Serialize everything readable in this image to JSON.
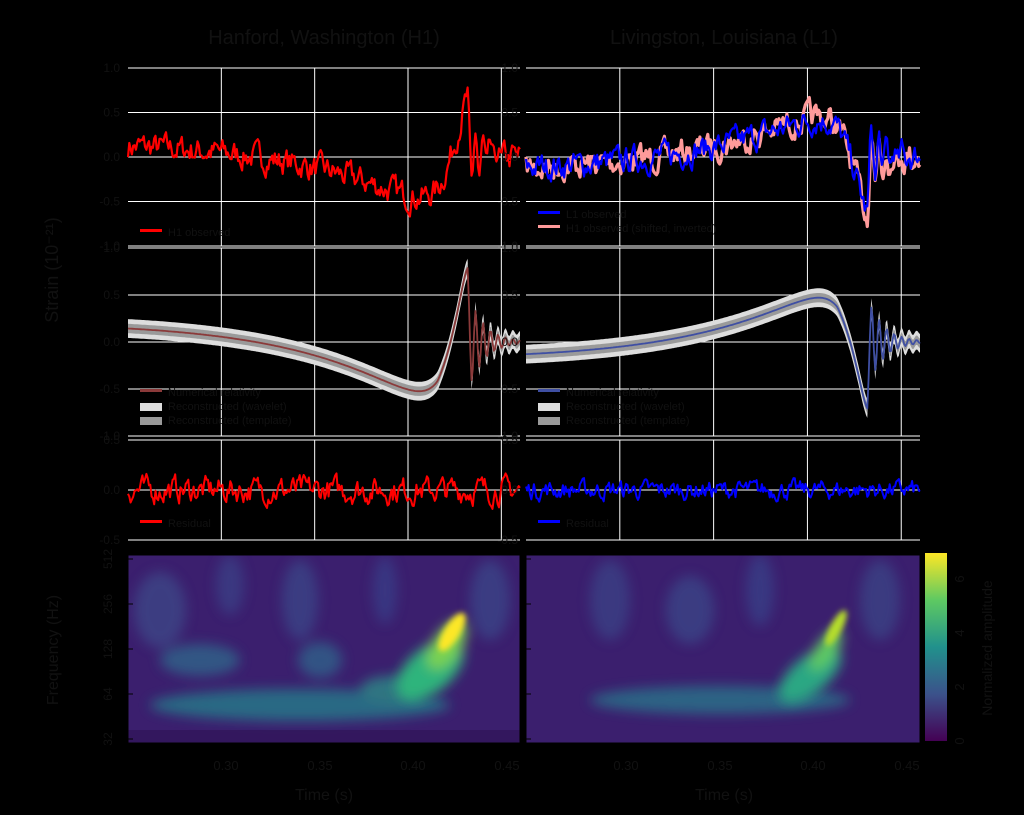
{
  "figure": {
    "columns": [
      {
        "title": "Hanford, Washington (H1)",
        "xlabel": "Time (s)",
        "xticks": [
          "0.30",
          "0.35",
          "0.40",
          "0.45"
        ]
      },
      {
        "title": "Livingston, Louisiana (L1)",
        "xlabel": "Time (s)",
        "xticks": [
          "0.30",
          "0.35",
          "0.40",
          "0.45"
        ]
      }
    ],
    "strain_ylabel": "Strain (10⁻²¹)",
    "freq_ylabel": "Frequency (Hz)",
    "colorbar": {
      "label": "Normalized amplitude",
      "ticks": [
        "0",
        "2",
        "4",
        "6"
      ]
    },
    "colors": {
      "h1": "#ff0000",
      "l1": "#0000ff",
      "h1_shifted": "#ff9a9a",
      "nr_h1": "#8b3a3a",
      "nr_l1": "#3f4fa3",
      "band_light": "#dddddd",
      "band_dark": "#9a9a9a",
      "grid": "#ffffff",
      "background": "#000000"
    }
  },
  "chart_data": [
    {
      "type": "line",
      "id": "h1-whitened",
      "series": [
        {
          "name": "H1 observed",
          "color": "#ff0000"
        }
      ],
      "yticks": [
        "1.0",
        "0.5",
        "0.0",
        "-0.5",
        "-1.0"
      ],
      "ylim": [
        -1.0,
        1.0
      ],
      "xlim": [
        0.25,
        0.46
      ],
      "legend": [
        "H1 observed"
      ],
      "grid": true
    },
    {
      "type": "line",
      "id": "l1-whitened",
      "series": [
        {
          "name": "L1 observed",
          "color": "#0000ff"
        },
        {
          "name": "H1 observed (shifted, inverted)",
          "color": "#ff9a9a"
        }
      ],
      "yticks": [
        "1.0",
        "0.5",
        "0.0",
        "-0.5",
        "-1.0"
      ],
      "ylim": [
        -1.0,
        1.0
      ],
      "xlim": [
        0.25,
        0.46
      ],
      "legend": [
        "L1 observed",
        "H1 observed (shifted, inverted)"
      ],
      "grid": true
    },
    {
      "type": "line",
      "id": "h1-reconstructed",
      "series": [
        {
          "name": "Numerical relativity",
          "color": "#8b3a3a"
        }
      ],
      "yticks": [
        "1.0",
        "0.5",
        "0.0",
        "-0.5",
        "-1.0"
      ],
      "ylim": [
        -1.0,
        1.0
      ],
      "xlim": [
        0.25,
        0.46
      ],
      "legend": [
        "Numerical relativity",
        "Reconstructed (wavelet)",
        "Reconstructed (template)"
      ],
      "grid": true
    },
    {
      "type": "line",
      "id": "l1-reconstructed",
      "series": [
        {
          "name": "Numerical relativity",
          "color": "#3f4fa3"
        }
      ],
      "yticks": [
        "1.0",
        "0.5",
        "0.0",
        "-0.5",
        "-1.0"
      ],
      "ylim": [
        -1.0,
        1.0
      ],
      "xlim": [
        0.25,
        0.46
      ],
      "legend": [
        "Numerical relativity",
        "Reconstructed (wavelet)",
        "Reconstructed (template)"
      ],
      "grid": true
    },
    {
      "type": "line",
      "id": "h1-residual",
      "series": [
        {
          "name": "Residual",
          "color": "#ff0000"
        }
      ],
      "yticks": [
        "0.5",
        "0.0",
        "-0.5"
      ],
      "ylim": [
        -0.5,
        0.5
      ],
      "xlim": [
        0.25,
        0.46
      ],
      "legend": [
        "Residual"
      ],
      "grid": true
    },
    {
      "type": "line",
      "id": "l1-residual",
      "series": [
        {
          "name": "Residual",
          "color": "#0000ff"
        }
      ],
      "yticks": [
        "0.5",
        "0.0",
        "-0.5"
      ],
      "ylim": [
        -0.5,
        0.5
      ],
      "xlim": [
        0.25,
        0.46
      ],
      "legend": [
        "Residual"
      ],
      "grid": true
    },
    {
      "type": "heatmap",
      "id": "h1-spectrogram",
      "yticks": [
        "512",
        "256",
        "128",
        "64",
        "32"
      ],
      "xticks": [
        "0.30",
        "0.35",
        "0.40",
        "0.45"
      ],
      "xlim": [
        0.25,
        0.46
      ],
      "ylim": [
        32,
        512
      ],
      "yscale": "log",
      "colormap": "viridis",
      "crange": [
        0,
        7
      ]
    },
    {
      "type": "heatmap",
      "id": "l1-spectrogram",
      "yticks": [
        "512",
        "256",
        "128",
        "64",
        "32"
      ],
      "xticks": [
        "0.30",
        "0.35",
        "0.40",
        "0.45"
      ],
      "xlim": [
        0.25,
        0.46
      ],
      "ylim": [
        32,
        512
      ],
      "yscale": "log",
      "colormap": "viridis",
      "crange": [
        0,
        7
      ]
    }
  ]
}
